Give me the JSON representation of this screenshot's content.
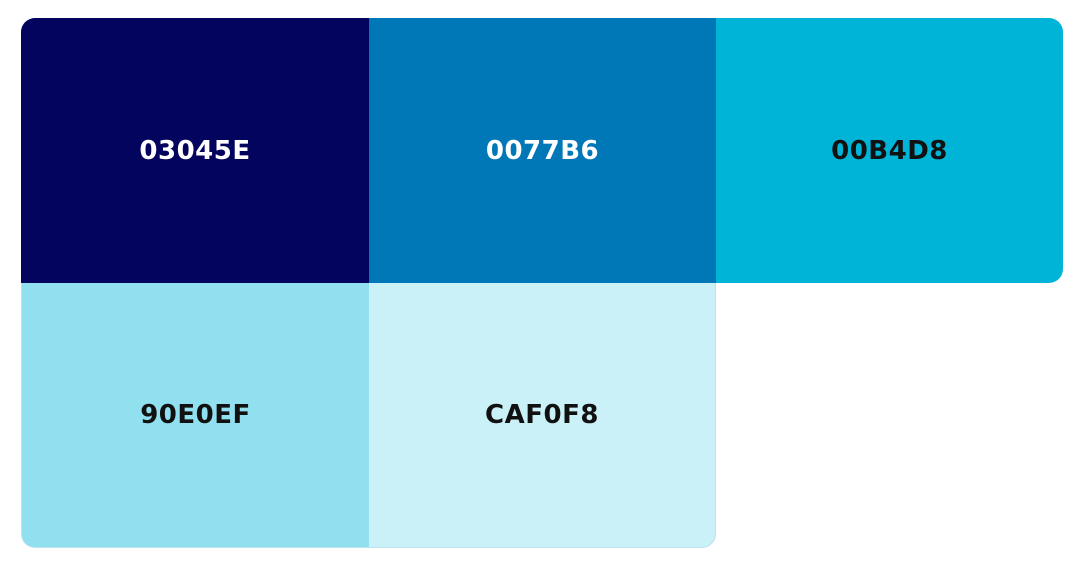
{
  "swatches": [
    {
      "code": "03045E",
      "color": "#03045E",
      "text_color": "#ffffff"
    },
    {
      "code": "0077B6",
      "color": "#0077B6",
      "text_color": "#ffffff"
    },
    {
      "code": "00B4D8",
      "color": "#00B4D8",
      "text_color": "#111111"
    },
    {
      "code": "90E0EF",
      "color": "#90E0EF",
      "text_color": "#111111"
    },
    {
      "code": "CAF0F8",
      "color": "#CAF0F8",
      "text_color": "#111111"
    }
  ]
}
